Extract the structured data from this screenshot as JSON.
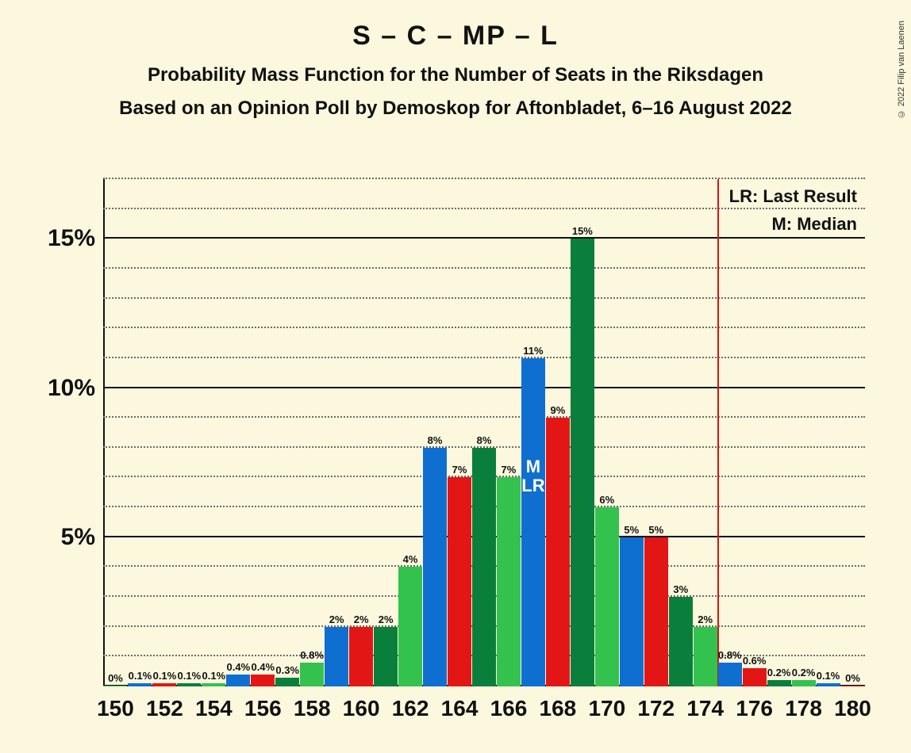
{
  "background_color": "#fbf8de",
  "title": "S – C – MP – L",
  "subtitle": "Probability Mass Function for the Number of Seats in the Riksdagen",
  "subtitle2": "Based on an Opinion Poll by Demoskop for Aftonbladet, 6–16 August 2022",
  "copyright": "© 2022 Filip van Laenen",
  "legend": {
    "lr": "LR: Last Result",
    "m": "M: Median"
  },
  "m_label": "M",
  "lr_label": "LR",
  "chart": {
    "type": "bar",
    "ylim": [
      0,
      17
    ],
    "y_major_ticks": [
      5,
      10,
      15
    ],
    "y_major_tick_labels": [
      "5%",
      "10%",
      "15%"
    ],
    "y_minor_step": 1,
    "x_start": 150,
    "x_end": 180,
    "x_tick_step": 2,
    "m_lr_x": 167,
    "vline_x": 175,
    "group_width": 0.97,
    "series_colors": [
      "#33c24e",
      "#0f6fd1",
      "#e31616",
      "#0a7f3c"
    ],
    "grid_minor_color": "#6b6b6b",
    "grid_major_color": "#111111",
    "bars": [
      {
        "x": 150,
        "s": 0,
        "v": 0,
        "label": "0%"
      },
      {
        "x": 151,
        "s": 1,
        "v": 0.1,
        "label": "0.1%"
      },
      {
        "x": 152,
        "s": 2,
        "v": 0.1,
        "label": "0.1%"
      },
      {
        "x": 153,
        "s": 3,
        "v": 0.1,
        "label": "0.1%"
      },
      {
        "x": 154,
        "s": 0,
        "v": 0.1,
        "label": "0.1%"
      },
      {
        "x": 155,
        "s": 1,
        "v": 0.4,
        "label": "0.4%"
      },
      {
        "x": 156,
        "s": 2,
        "v": 0.4,
        "label": "0.4%"
      },
      {
        "x": 157,
        "s": 3,
        "v": 0.3,
        "label": "0.3%"
      },
      {
        "x": 158,
        "s": 0,
        "v": 0.8,
        "label": "0.8%"
      },
      {
        "x": 159,
        "s": 1,
        "v": 2,
        "label": "2%"
      },
      {
        "x": 160,
        "s": 2,
        "v": 2,
        "label": "2%"
      },
      {
        "x": 161,
        "s": 3,
        "v": 2,
        "label": "2%"
      },
      {
        "x": 162,
        "s": 0,
        "v": 4,
        "label": "4%"
      },
      {
        "x": 163,
        "s": 1,
        "v": 8,
        "label": "8%"
      },
      {
        "x": 164,
        "s": 2,
        "v": 7,
        "label": "7%"
      },
      {
        "x": 165,
        "s": 3,
        "v": 8,
        "label": "8%"
      },
      {
        "x": 166,
        "s": 0,
        "v": 7,
        "label": "7%"
      },
      {
        "x": 167,
        "s": 1,
        "v": 11,
        "label": "11%"
      },
      {
        "x": 168,
        "s": 2,
        "v": 9,
        "label": "9%"
      },
      {
        "x": 169,
        "s": 3,
        "v": 15,
        "label": "15%"
      },
      {
        "x": 170,
        "s": 0,
        "v": 6,
        "label": "6%"
      },
      {
        "x": 171,
        "s": 1,
        "v": 5,
        "label": "5%"
      },
      {
        "x": 172,
        "s": 2,
        "v": 5,
        "label": "5%"
      },
      {
        "x": 173,
        "s": 3,
        "v": 3,
        "label": "3%"
      },
      {
        "x": 174,
        "s": 0,
        "v": 2,
        "label": "2%"
      },
      {
        "x": 175,
        "s": 1,
        "v": 0.8,
        "label": "0.8%"
      },
      {
        "x": 176,
        "s": 2,
        "v": 0.6,
        "label": "0.6%"
      },
      {
        "x": 177,
        "s": 3,
        "v": 0.2,
        "label": "0.2%"
      },
      {
        "x": 178,
        "s": 0,
        "v": 0.2,
        "label": "0.2%"
      },
      {
        "x": 179,
        "s": 1,
        "v": 0.1,
        "label": "0.1%"
      },
      {
        "x": 180,
        "s": 2,
        "v": 0,
        "label": "0%"
      }
    ]
  }
}
